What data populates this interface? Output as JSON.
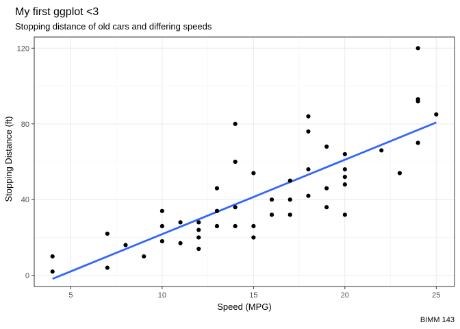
{
  "chart_data": {
    "type": "scatter",
    "title": "My first ggplot <3",
    "subtitle": "Stopping distance of old cars and differing speeds",
    "xlabel": "Speed (MPG)",
    "ylabel": "Stopping Distance (ft)",
    "caption": "BIMM 143",
    "xlim": [
      3.0,
      26.0
    ],
    "ylim": [
      -5.9,
      125.9
    ],
    "x_ticks": [
      5,
      10,
      15,
      20,
      25
    ],
    "y_ticks": [
      0,
      40,
      80,
      120
    ],
    "grid": true,
    "legend": "none",
    "points_color": "#000000",
    "points": [
      {
        "x": 4,
        "y": 2
      },
      {
        "x": 4,
        "y": 10
      },
      {
        "x": 7,
        "y": 4
      },
      {
        "x": 7,
        "y": 22
      },
      {
        "x": 8,
        "y": 16
      },
      {
        "x": 9,
        "y": 10
      },
      {
        "x": 10,
        "y": 18
      },
      {
        "x": 10,
        "y": 26
      },
      {
        "x": 10,
        "y": 34
      },
      {
        "x": 11,
        "y": 17
      },
      {
        "x": 11,
        "y": 28
      },
      {
        "x": 12,
        "y": 14
      },
      {
        "x": 12,
        "y": 20
      },
      {
        "x": 12,
        "y": 24
      },
      {
        "x": 12,
        "y": 28
      },
      {
        "x": 13,
        "y": 26
      },
      {
        "x": 13,
        "y": 34
      },
      {
        "x": 13,
        "y": 34
      },
      {
        "x": 13,
        "y": 46
      },
      {
        "x": 14,
        "y": 26
      },
      {
        "x": 14,
        "y": 36
      },
      {
        "x": 14,
        "y": 60
      },
      {
        "x": 14,
        "y": 80
      },
      {
        "x": 15,
        "y": 20
      },
      {
        "x": 15,
        "y": 26
      },
      {
        "x": 15,
        "y": 54
      },
      {
        "x": 16,
        "y": 32
      },
      {
        "x": 16,
        "y": 40
      },
      {
        "x": 17,
        "y": 32
      },
      {
        "x": 17,
        "y": 40
      },
      {
        "x": 17,
        "y": 50
      },
      {
        "x": 18,
        "y": 42
      },
      {
        "x": 18,
        "y": 56
      },
      {
        "x": 18,
        "y": 76
      },
      {
        "x": 18,
        "y": 84
      },
      {
        "x": 19,
        "y": 36
      },
      {
        "x": 19,
        "y": 46
      },
      {
        "x": 19,
        "y": 68
      },
      {
        "x": 20,
        "y": 32
      },
      {
        "x": 20,
        "y": 48
      },
      {
        "x": 20,
        "y": 52
      },
      {
        "x": 20,
        "y": 56
      },
      {
        "x": 20,
        "y": 64
      },
      {
        "x": 22,
        "y": 66
      },
      {
        "x": 23,
        "y": 54
      },
      {
        "x": 24,
        "y": 70
      },
      {
        "x": 24,
        "y": 92
      },
      {
        "x": 24,
        "y": 93
      },
      {
        "x": 24,
        "y": 120
      },
      {
        "x": 25,
        "y": 85
      }
    ],
    "trend_line": {
      "type": "linear",
      "color": "#3366FF",
      "x": [
        4,
        25
      ],
      "y": [
        -1.85,
        80.73
      ]
    }
  }
}
